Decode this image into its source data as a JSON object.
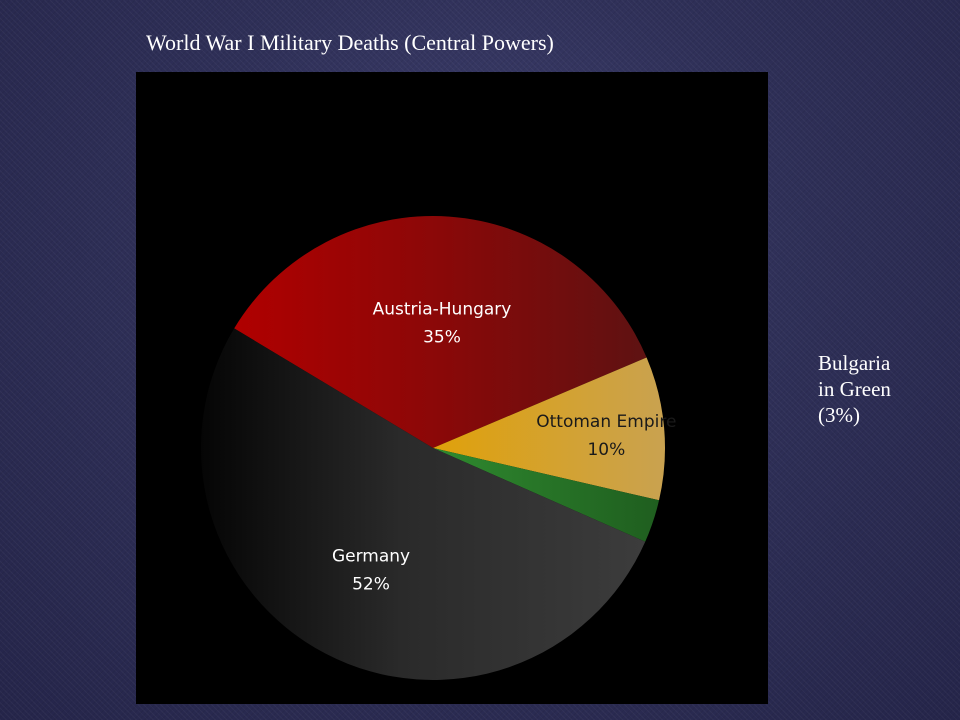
{
  "slide": {
    "title": "World War I Military Deaths (Central Powers)",
    "note_lines": [
      "Bulgaria",
      "in Green",
      "(3%)"
    ]
  },
  "chart_data": {
    "type": "pie",
    "title": "",
    "slices": [
      {
        "label": "Germany",
        "percent_label": "52%",
        "value": 52,
        "color": "#333333"
      },
      {
        "label": "Austria-Hungary",
        "percent_label": "35%",
        "value": 35,
        "color": "#8b0a0a"
      },
      {
        "label": "Ottoman Empire",
        "percent_label": "10%",
        "value": 10,
        "color": "#d4a628"
      },
      {
        "label": "",
        "percent_label": "",
        "value": 3,
        "color": "#2e7d32"
      }
    ]
  }
}
